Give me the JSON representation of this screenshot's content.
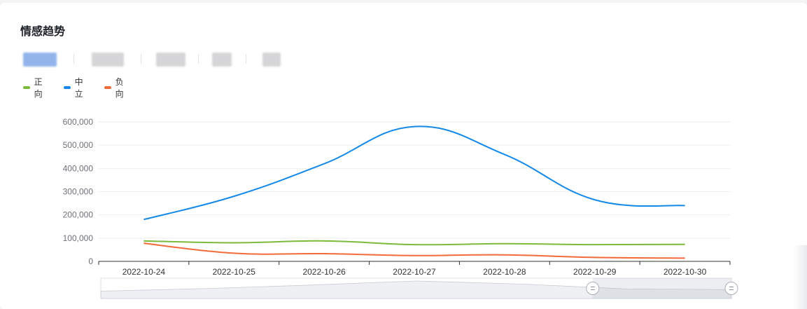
{
  "card": {
    "title": "情感趋势"
  },
  "tabs": [
    {
      "label": "",
      "active": true
    },
    {
      "label": "",
      "active": false
    },
    {
      "label": "",
      "active": false
    },
    {
      "label": "",
      "active": false
    },
    {
      "label": "",
      "active": false
    }
  ],
  "colors": {
    "positive": "#7cba3b",
    "neutral": "#1589e8",
    "negative": "#f26a3a",
    "grid": "#eceef1",
    "axis": "#333333",
    "tick": "#6e7079"
  },
  "chart_data": {
    "type": "line",
    "title": "",
    "xlabel": "",
    "ylabel": "",
    "categories": [
      "2022-10-24",
      "2022-10-25",
      "2022-10-26",
      "2022-10-27",
      "2022-10-28",
      "2022-10-29",
      "2022-10-30"
    ],
    "ylim": [
      0,
      600000
    ],
    "yticks": [
      0,
      100000,
      200000,
      300000,
      400000,
      500000,
      600000
    ],
    "ytick_labels": [
      "0",
      "100,000",
      "200,000",
      "300,000",
      "400,000",
      "500,000",
      "600,000"
    ],
    "grid": true,
    "legend_position": "top-left",
    "series": [
      {
        "name": "正向",
        "color": "#7cba3b",
        "values": [
          88000,
          80000,
          88000,
          72000,
          76000,
          72000,
          73000
        ]
      },
      {
        "name": "中立",
        "color": "#1589e8",
        "values": [
          180000,
          280000,
          420000,
          580000,
          460000,
          265000,
          240000
        ]
      },
      {
        "name": "负向",
        "color": "#f26a3a",
        "values": [
          78000,
          35000,
          33000,
          25000,
          28000,
          17000,
          14000
        ]
      }
    ],
    "datazoom": {
      "start_fraction": 0.78,
      "end_fraction": 1.0
    }
  }
}
